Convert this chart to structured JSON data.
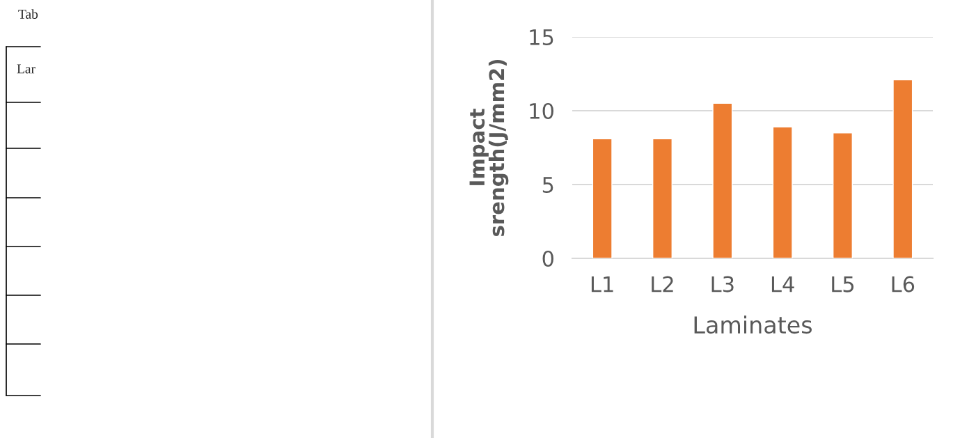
{
  "chart_data": {
    "type": "bar",
    "xlabel": "Laminates",
    "ylabel": "Impact\nsrength(J/mm2)",
    "categories": [
      "L1",
      "L2",
      "L3",
      "L4",
      "L5",
      "L6"
    ],
    "values": [
      8.1,
      8.1,
      10.5,
      8.9,
      8.5,
      12.1
    ],
    "color": "#ed7d31",
    "ylim": [
      0,
      15
    ],
    "yticks": [
      0,
      5,
      10,
      15
    ],
    "grid": "y",
    "annotations": [
      "Tab",
      "Lar"
    ]
  }
}
